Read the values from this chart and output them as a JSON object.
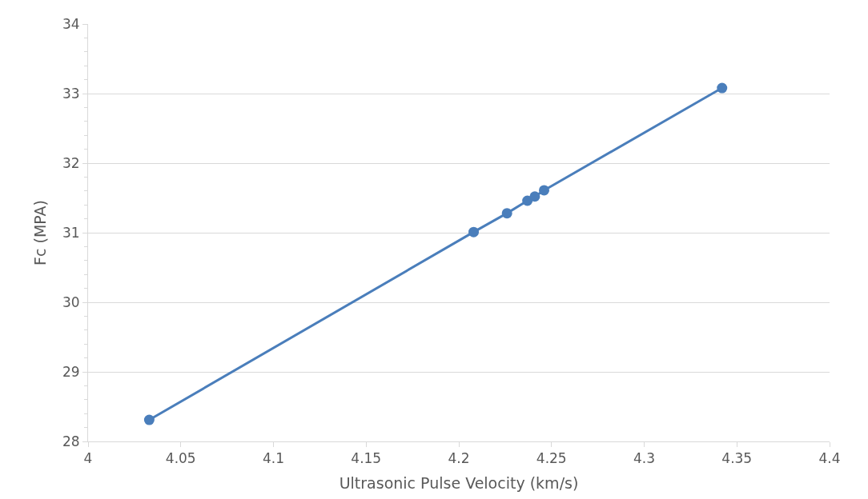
{
  "chart_data": {
    "type": "line",
    "xlabel": "Ultrasonic Pulse Velocity (km/s)",
    "ylabel": "Fc (MPA)",
    "series": [
      {
        "color": "#4a7ebb",
        "x": [
          4.033,
          4.208,
          4.226,
          4.237,
          4.241,
          4.246,
          4.342
        ],
        "values": [
          28.31,
          31.01,
          31.28,
          31.46,
          31.52,
          31.61,
          33.08
        ]
      }
    ],
    "xlim": [
      4,
      4.4
    ],
    "xticks": [
      4,
      {
        "value": 4.05,
        "label": "4.05"
      },
      {
        "value": 4.1,
        "label": "4.1"
      },
      {
        "value": 4.15,
        "label": "4.15"
      },
      {
        "value": 4.2,
        "label": "4.2"
      },
      {
        "value": 4.25,
        "label": "4.25"
      },
      {
        "value": 4.3,
        "label": "4.3"
      },
      {
        "value": 4.35,
        "label": "4.35"
      },
      {
        "value": 4.4,
        "label": "4.4"
      }
    ],
    "ylim": [
      28,
      34
    ],
    "yticks": [
      28,
      29,
      30,
      31,
      32,
      33,
      34
    ],
    "grid": "y",
    "marker": "circle",
    "line_style": "solid",
    "legend": false
  }
}
